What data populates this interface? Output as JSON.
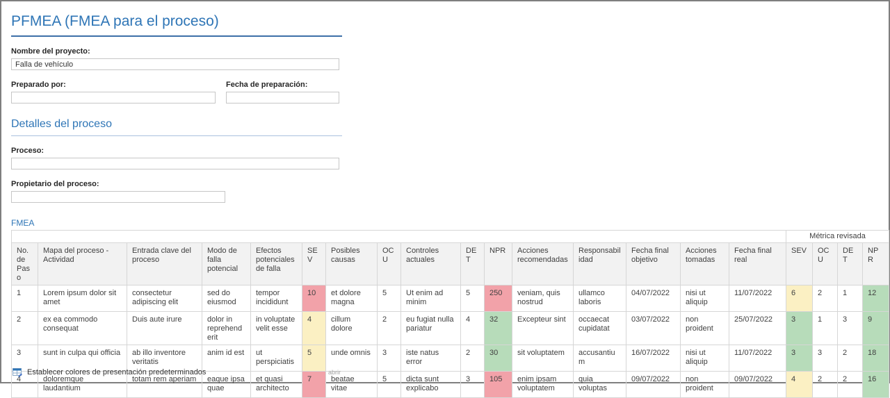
{
  "page": {
    "title": "PFMEA (FMEA para el proceso)",
    "footer": {
      "set_colors_label": "Establecer colores de presentación predeterminados",
      "open_label": "abrir"
    }
  },
  "form": {
    "project_name_label": "Nombre del proyecto:",
    "project_name_value": "Falla de vehículo",
    "prepared_by_label": "Preparado por:",
    "prepared_by_value": "",
    "prep_date_label": "Fecha de preparación:",
    "prep_date_value": "",
    "process_section_title": "Detalles del proceso",
    "process_label": "Proceso:",
    "process_value": "",
    "process_owner_label": "Propietario del proceso:",
    "process_owner_value": ""
  },
  "fmea": {
    "section_label": "FMEA",
    "group_header": "Métrica revisada",
    "headers": [
      "No. de Paso",
      "Mapa del proceso - Actividad",
      "Entrada clave del proceso",
      "Modo de falla potencial",
      "Efectos potenciales de falla",
      "SEV",
      "Posibles causas",
      "OCU",
      "Controles actuales",
      "DET",
      "NPR",
      "Acciones recomendadas",
      "Responsabilidad",
      "Fecha final objetivo",
      "Acciones tomadas",
      "Fecha final real",
      "SEV",
      "OCU",
      "DET",
      "NPR"
    ],
    "rows": [
      {
        "no": "1",
        "activity": "Lorem ipsum dolor sit amet",
        "key_input": "consectetur adipiscing elit",
        "failure_mode": "sed do eiusmod",
        "effects": "tempor incididunt",
        "sev": "10",
        "sev_color": "red",
        "causes": "et dolore magna",
        "ocu": "5",
        "controls": "Ut enim ad minim",
        "det": "5",
        "npr": "250",
        "npr_color": "red",
        "recommended": "veniam, quis nostrud",
        "responsibility": "ullamco laboris",
        "target_date": "04/07/2022",
        "actions_taken": "nisi ut aliquip",
        "real_date": "11/07/2022",
        "r_sev": "6",
        "r_sev_color": "yellow",
        "r_ocu": "2",
        "r_det": "1",
        "r_npr": "12",
        "r_npr_color": "green"
      },
      {
        "no": "2",
        "activity": "ex ea commodo consequat",
        "key_input": "Duis aute irure",
        "failure_mode": "dolor in reprehenderit",
        "effects": "in voluptate velit esse",
        "sev": "4",
        "sev_color": "yellow",
        "causes": "cillum dolore",
        "ocu": "2",
        "controls": "eu fugiat nulla pariatur",
        "det": "4",
        "npr": "32",
        "npr_color": "green",
        "recommended": "Excepteur sint",
        "responsibility": "occaecat cupidatat",
        "target_date": "03/07/2022",
        "actions_taken": "non proident",
        "real_date": "25/07/2022",
        "r_sev": "3",
        "r_sev_color": "green",
        "r_ocu": "1",
        "r_det": "3",
        "r_npr": "9",
        "r_npr_color": "green"
      },
      {
        "no": "3",
        "activity": "sunt in culpa qui officia",
        "key_input": "ab illo inventore veritatis",
        "failure_mode": "anim id est",
        "effects": "ut perspiciatis",
        "sev": "5",
        "sev_color": "yellow",
        "causes": "unde omnis",
        "ocu": "3",
        "controls": "iste natus error",
        "det": "2",
        "npr": "30",
        "npr_color": "green",
        "recommended": "sit voluptatem",
        "responsibility": "accusantium",
        "target_date": "16/07/2022",
        "actions_taken": "nisi ut aliquip",
        "real_date": "11/07/2022",
        "r_sev": "3",
        "r_sev_color": "green",
        "r_ocu": "3",
        "r_det": "2",
        "r_npr": "18",
        "r_npr_color": "green"
      },
      {
        "no": "4",
        "activity": "doloremque laudantium",
        "key_input": "totam rem aperiam",
        "failure_mode": "eaque ipsa quae",
        "effects": "et quasi architecto",
        "sev": "7",
        "sev_color": "red",
        "causes": "beatae vitae",
        "ocu": "5",
        "controls": "dicta sunt explicabo",
        "det": "3",
        "npr": "105",
        "npr_color": "red",
        "recommended": "enim ipsam voluptatem",
        "responsibility": "quia voluptas",
        "target_date": "09/07/2022",
        "actions_taken": "non proident",
        "real_date": "09/07/2022",
        "r_sev": "4",
        "r_sev_color": "yellow",
        "r_ocu": "2",
        "r_det": "2",
        "r_npr": "16",
        "r_npr_color": "green"
      }
    ]
  },
  "colors": {
    "accent": "#2e75b6",
    "risk_high": "#f2a2a9",
    "risk_medium": "#fbf0c3",
    "risk_low": "#b7dcba"
  }
}
